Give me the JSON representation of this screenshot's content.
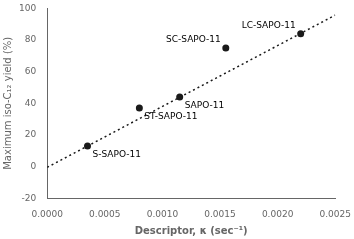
{
  "chart_data": {
    "type": "scatter",
    "xlabel": "Descriptor, κ (sec⁻¹)",
    "ylabel": "Maximum iso-C₁₂ yield (%)",
    "series": [
      {
        "type": "scatter",
        "marker": "circle",
        "color": "#1a1a1a",
        "x": [
          0.00035,
          0.0008,
          0.00115,
          0.00155,
          0.0022
        ],
        "values": [
          13,
          37,
          44,
          75,
          84
        ]
      },
      {
        "type": "line",
        "line_style": "dotted",
        "color": "#1a1a1a",
        "x": [
          0.0,
          0.0025
        ],
        "values": [
          -0.5,
          95.75
        ]
      }
    ],
    "annotations": [
      {
        "text": "S-SAPO-11",
        "x": 0.00035,
        "y": 13
      },
      {
        "text": "ST-SAPO-11",
        "x": 0.0008,
        "y": 37
      },
      {
        "text": "SAPO-11",
        "x": 0.00115,
        "y": 44
      },
      {
        "text": "SC-SAPO-11",
        "x": 0.00155,
        "y": 75
      },
      {
        "text": "LC-SAPO-11",
        "x": 0.0022,
        "y": 84
      }
    ],
    "xlim": [
      0.0,
      0.0025
    ],
    "ylim": [
      -20,
      100
    ],
    "xticks": [
      {
        "value": 0.0,
        "label": "0.0000"
      },
      {
        "value": 0.0005,
        "label": "0.0005"
      },
      {
        "value": 0.001,
        "label": "0.0010"
      },
      {
        "value": 0.0015,
        "label": "0.0015"
      },
      {
        "value": 0.002,
        "label": "0.0020"
      },
      {
        "value": 0.0025,
        "label": "0.0025"
      }
    ],
    "yticks": [
      -20,
      0,
      20,
      40,
      60,
      80,
      100
    ],
    "grid": false,
    "tick_labels": true
  }
}
